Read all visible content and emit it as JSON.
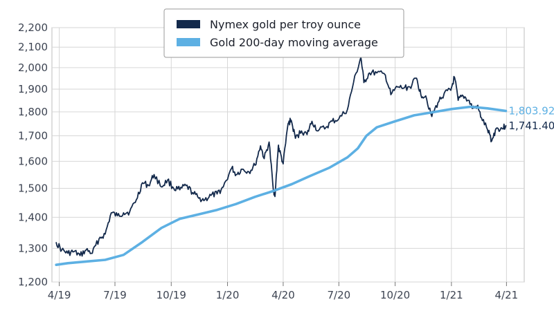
{
  "chart_data": {
    "type": "line",
    "title": "",
    "xlabel": "",
    "ylabel": "",
    "y_scale": "log",
    "ylim": [
      1200,
      2200
    ],
    "y_ticks": [
      1200,
      1300,
      1400,
      1500,
      1600,
      1700,
      1800,
      1900,
      2000,
      2100,
      2200
    ],
    "y_tick_labels": [
      "1,200",
      "1,300",
      "1,400",
      "1,500",
      "1,600",
      "1,700",
      "1,800",
      "1,900",
      "2,000",
      "2,100",
      "2,200"
    ],
    "xlim": [
      "2019-03-20",
      "2021-04-30"
    ],
    "x_ticks": [
      "2019-04-01",
      "2019-07-01",
      "2019-10-01",
      "2020-01-01",
      "2020-04-01",
      "2020-07-01",
      "2020-10-01",
      "2021-01-01",
      "2021-04-01"
    ],
    "x_tick_labels": [
      "4/19",
      "7/19",
      "10/19",
      "1/20",
      "4/20",
      "7/20",
      "10/20",
      "1/21",
      "4/21"
    ],
    "grid": true,
    "legend_position": "top-center",
    "series": [
      {
        "name": "Nymex gold per troy ounce",
        "color": "#13294b",
        "end_label": "1,741.40",
        "points": [
          [
            "2019-03-27",
            1318
          ],
          [
            "2019-04-05",
            1295
          ],
          [
            "2019-04-15",
            1285
          ],
          [
            "2019-04-25",
            1290
          ],
          [
            "2019-05-05",
            1278
          ],
          [
            "2019-05-15",
            1295
          ],
          [
            "2019-05-25",
            1285
          ],
          [
            "2019-06-05",
            1330
          ],
          [
            "2019-06-15",
            1345
          ],
          [
            "2019-06-25",
            1415
          ],
          [
            "2019-07-05",
            1405
          ],
          [
            "2019-07-15",
            1415
          ],
          [
            "2019-07-25",
            1418
          ],
          [
            "2019-08-05",
            1460
          ],
          [
            "2019-08-15",
            1520
          ],
          [
            "2019-08-25",
            1510
          ],
          [
            "2019-09-03",
            1550
          ],
          [
            "2019-09-15",
            1505
          ],
          [
            "2019-09-25",
            1530
          ],
          [
            "2019-10-05",
            1500
          ],
          [
            "2019-10-15",
            1495
          ],
          [
            "2019-10-25",
            1510
          ],
          [
            "2019-11-05",
            1485
          ],
          [
            "2019-11-15",
            1465
          ],
          [
            "2019-11-25",
            1460
          ],
          [
            "2019-12-05",
            1475
          ],
          [
            "2019-12-15",
            1480
          ],
          [
            "2019-12-25",
            1505
          ],
          [
            "2020-01-08",
            1575
          ],
          [
            "2020-01-15",
            1550
          ],
          [
            "2020-01-25",
            1570
          ],
          [
            "2020-02-05",
            1560
          ],
          [
            "2020-02-15",
            1585
          ],
          [
            "2020-02-24",
            1660
          ],
          [
            "2020-03-01",
            1610
          ],
          [
            "2020-03-09",
            1675
          ],
          [
            "2020-03-16",
            1490
          ],
          [
            "2020-03-19",
            1480
          ],
          [
            "2020-03-24",
            1660
          ],
          [
            "2020-03-26",
            1640
          ],
          [
            "2020-04-01",
            1590
          ],
          [
            "2020-04-09",
            1750
          ],
          [
            "2020-04-14",
            1765
          ],
          [
            "2020-04-21",
            1690
          ],
          [
            "2020-05-01",
            1720
          ],
          [
            "2020-05-10",
            1705
          ],
          [
            "2020-05-18",
            1760
          ],
          [
            "2020-05-28",
            1720
          ],
          [
            "2020-06-10",
            1735
          ],
          [
            "2020-06-20",
            1760
          ],
          [
            "2020-07-01",
            1770
          ],
          [
            "2020-07-15",
            1810
          ],
          [
            "2020-07-25",
            1930
          ],
          [
            "2020-08-06",
            2050
          ],
          [
            "2020-08-11",
            1930
          ],
          [
            "2020-08-20",
            1975
          ],
          [
            "2020-09-01",
            1975
          ],
          [
            "2020-09-15",
            1965
          ],
          [
            "2020-09-24",
            1875
          ],
          [
            "2020-10-05",
            1910
          ],
          [
            "2020-10-15",
            1905
          ],
          [
            "2020-10-25",
            1910
          ],
          [
            "2020-11-05",
            1950
          ],
          [
            "2020-11-12",
            1875
          ],
          [
            "2020-11-20",
            1870
          ],
          [
            "2020-11-30",
            1780
          ],
          [
            "2020-12-10",
            1840
          ],
          [
            "2020-12-20",
            1880
          ],
          [
            "2020-12-31",
            1895
          ],
          [
            "2021-01-06",
            1955
          ],
          [
            "2021-01-12",
            1850
          ],
          [
            "2021-01-20",
            1870
          ],
          [
            "2021-01-29",
            1850
          ],
          [
            "2021-02-05",
            1815
          ],
          [
            "2021-02-12",
            1825
          ],
          [
            "2021-02-19",
            1775
          ],
          [
            "2021-03-01",
            1725
          ],
          [
            "2021-03-08",
            1680
          ],
          [
            "2021-03-15",
            1730
          ],
          [
            "2021-03-25",
            1730
          ],
          [
            "2021-03-31",
            1741.4
          ]
        ]
      },
      {
        "name": "Gold 200-day moving average",
        "color": "#5db0e3",
        "end_label": "1,803.92",
        "points": [
          [
            "2019-03-27",
            1250
          ],
          [
            "2019-04-15",
            1255
          ],
          [
            "2019-05-15",
            1260
          ],
          [
            "2019-06-15",
            1265
          ],
          [
            "2019-07-15",
            1280
          ],
          [
            "2019-08-15",
            1320
          ],
          [
            "2019-09-15",
            1365
          ],
          [
            "2019-10-15",
            1395
          ],
          [
            "2019-11-15",
            1410
          ],
          [
            "2019-12-15",
            1425
          ],
          [
            "2020-01-15",
            1445
          ],
          [
            "2020-02-15",
            1470
          ],
          [
            "2020-03-15",
            1490
          ],
          [
            "2020-04-15",
            1515
          ],
          [
            "2020-05-15",
            1545
          ],
          [
            "2020-06-15",
            1575
          ],
          [
            "2020-07-15",
            1615
          ],
          [
            "2020-08-01",
            1650
          ],
          [
            "2020-08-15",
            1700
          ],
          [
            "2020-09-01",
            1735
          ],
          [
            "2020-10-01",
            1760
          ],
          [
            "2020-11-01",
            1785
          ],
          [
            "2020-12-01",
            1798
          ],
          [
            "2021-01-01",
            1812
          ],
          [
            "2021-02-01",
            1822
          ],
          [
            "2021-03-01",
            1815
          ],
          [
            "2021-03-31",
            1803.92
          ]
        ]
      }
    ]
  }
}
